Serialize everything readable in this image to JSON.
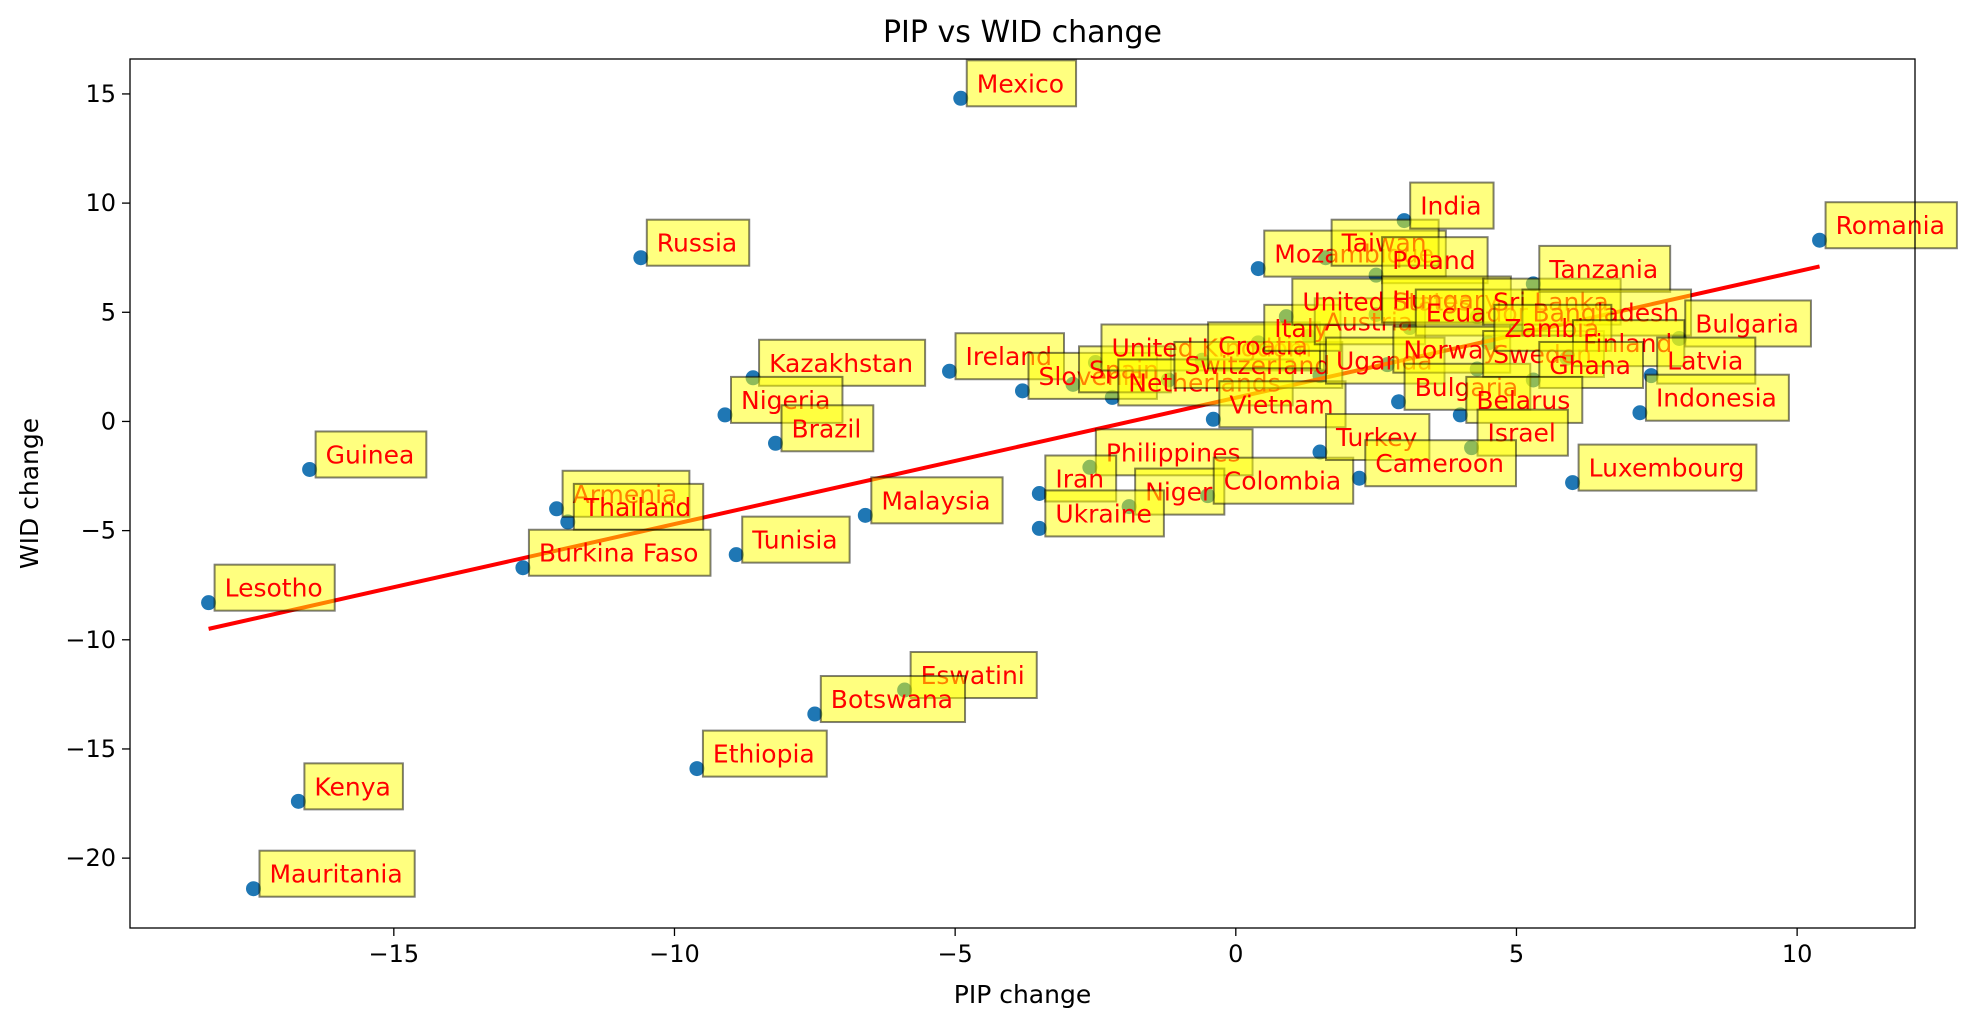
{
  "chart_data": {
    "type": "scatter",
    "title": "PIP vs WID change",
    "xlabel": "PIP change",
    "ylabel": "WID change",
    "xlim": [
      -19.7,
      12.1
    ],
    "ylim": [
      -23.2,
      16.6
    ],
    "xticks": [
      -15,
      -10,
      -5,
      0,
      5,
      10
    ],
    "xtick_labels": [
      "−15",
      "−10",
      "−5",
      "0",
      "5",
      "10"
    ],
    "yticks": [
      -20,
      -15,
      -10,
      -5,
      0,
      5,
      10,
      15
    ],
    "ytick_labels": [
      "−20",
      "−15",
      "−10",
      "−5",
      "0",
      "5",
      "10",
      "15"
    ],
    "grid": false,
    "colors": {
      "point": "#1f77b4",
      "trend_line": "#ff0000",
      "label_text": "#ff0000",
      "label_box_fill": "#ffff00",
      "label_box_edge": "#000000"
    },
    "trend_line": {
      "x": [
        -18.3,
        10.4
      ],
      "y": [
        -9.5,
        7.1
      ]
    },
    "points": [
      {
        "label": "Mexico",
        "x": -4.9,
        "y": 14.8
      },
      {
        "label": "Russia",
        "x": -10.6,
        "y": 7.5
      },
      {
        "label": "Kazakhstan",
        "x": -8.6,
        "y": 2.0
      },
      {
        "label": "Ireland",
        "x": -5.1,
        "y": 2.3
      },
      {
        "label": "Nigeria",
        "x": -9.1,
        "y": 0.3
      },
      {
        "label": "Brazil",
        "x": -8.2,
        "y": -1.0
      },
      {
        "label": "Guinea",
        "x": -16.5,
        "y": -2.2
      },
      {
        "label": "Armenia",
        "x": -12.1,
        "y": -4.0
      },
      {
        "label": "Thailand",
        "x": -11.9,
        "y": -4.6
      },
      {
        "label": "Burkina Faso",
        "x": -12.7,
        "y": -6.7
      },
      {
        "label": "Tunisia",
        "x": -8.9,
        "y": -6.1
      },
      {
        "label": "Malaysia",
        "x": -6.6,
        "y": -4.3
      },
      {
        "label": "Lesotho",
        "x": -18.3,
        "y": -8.3
      },
      {
        "label": "Eswatini",
        "x": -5.9,
        "y": -12.3
      },
      {
        "label": "Botswana",
        "x": -7.5,
        "y": -13.4
      },
      {
        "label": "Ethiopia",
        "x": -9.6,
        "y": -15.9
      },
      {
        "label": "Kenya",
        "x": -16.7,
        "y": -17.4
      },
      {
        "label": "Mauritania",
        "x": -17.5,
        "y": -21.4
      },
      {
        "label": "Slovenia",
        "x": -3.8,
        "y": 1.4
      },
      {
        "label": "Spain",
        "x": -2.9,
        "y": 1.7
      },
      {
        "label": "United Kingdom",
        "x": -2.5,
        "y": 2.7
      },
      {
        "label": "Netherlands",
        "x": -2.2,
        "y": 1.1
      },
      {
        "label": "Switzerland",
        "x": -1.2,
        "y": 1.9
      },
      {
        "label": "Croatia",
        "x": -0.6,
        "y": 2.8
      },
      {
        "label": "Italy",
        "x": 0.4,
        "y": 3.6
      },
      {
        "label": "Austria",
        "x": 1.3,
        "y": 3.9
      },
      {
        "label": "Vietnam",
        "x": -0.4,
        "y": 0.1
      },
      {
        "label": "Philippines",
        "x": -2.6,
        "y": -2.1
      },
      {
        "label": "Iran",
        "x": -3.5,
        "y": -3.3
      },
      {
        "label": "Niger",
        "x": -1.9,
        "y": -3.9
      },
      {
        "label": "Colombia",
        "x": -0.5,
        "y": -3.4
      },
      {
        "label": "Ukraine",
        "x": -3.5,
        "y": -4.9
      },
      {
        "label": "Mozambique",
        "x": 0.4,
        "y": 7.0
      },
      {
        "label": "Taiwan",
        "x": 1.6,
        "y": 7.5
      },
      {
        "label": "Poland",
        "x": 2.5,
        "y": 6.7
      },
      {
        "label": "India",
        "x": 3.0,
        "y": 9.2
      },
      {
        "label": "United States",
        "x": 0.9,
        "y": 4.8
      },
      {
        "label": "Hungary",
        "x": 2.5,
        "y": 4.9
      },
      {
        "label": "Ecuador",
        "x": 3.1,
        "y": 4.3
      },
      {
        "label": "Sri Lanka",
        "x": 4.3,
        "y": 4.8
      },
      {
        "label": "Uganda",
        "x": 1.5,
        "y": 2.1
      },
      {
        "label": "Norway",
        "x": 2.7,
        "y": 2.6
      },
      {
        "label": "Bulgaria",
        "x": 2.9,
        "y": 0.9
      },
      {
        "label": "Sweden",
        "x": 4.3,
        "y": 2.4
      },
      {
        "label": "Tanzania",
        "x": 5.3,
        "y": 6.3
      },
      {
        "label": "Bangladesh",
        "x": 5.0,
        "y": 4.3
      },
      {
        "label": "Zambia",
        "x": 4.5,
        "y": 3.6
      },
      {
        "label": "Finland",
        "x": 5.9,
        "y": 2.9
      },
      {
        "label": "Ghana",
        "x": 5.3,
        "y": 1.9
      },
      {
        "label": "Belarus",
        "x": 4.0,
        "y": 0.3
      },
      {
        "label": "Israel",
        "x": 4.2,
        "y": -1.2
      },
      {
        "label": "Turkey",
        "x": 1.5,
        "y": -1.4
      },
      {
        "label": "Cameroon",
        "x": 2.2,
        "y": -2.6
      },
      {
        "label": "Luxembourg",
        "x": 6.0,
        "y": -2.8
      },
      {
        "label": "Romania",
        "x": 10.4,
        "y": 8.3
      },
      {
        "label": "Bulgaria",
        "x": 7.9,
        "y": 3.8
      },
      {
        "label": "Latvia",
        "x": 7.4,
        "y": 2.1
      },
      {
        "label": "Indonesia",
        "x": 7.2,
        "y": 0.4
      }
    ]
  }
}
